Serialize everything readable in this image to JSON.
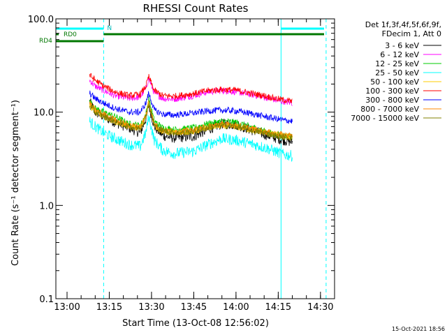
{
  "chart_data": {
    "type": "line",
    "title": "RHESSI Count Rates",
    "xlabel": "Start Time (13-Oct-08 12:56:02)",
    "ylabel": "Count Rate (s⁻¹ detector segment⁻¹)",
    "y_scale": "log",
    "ylim": [
      0.1,
      100.0
    ],
    "xlim": [
      "12:56:02",
      "14:35"
    ],
    "x_ticks": [
      "13:00",
      "13:15",
      "13:30",
      "13:45",
      "14:00",
      "14:15",
      "14:30"
    ],
    "y_ticks": [
      "0.1",
      "1.0",
      "10.0",
      "100.0"
    ],
    "legend_header": [
      "Det 1f,3f,4f,5f,6f,9f,",
      "FDecim 1, Att 0"
    ],
    "legend_position": "outside-right",
    "footer_date": "15-Oct-2021 18:56",
    "attenuator_labels": [
      "RD0",
      "RD4",
      "N"
    ],
    "series": [
      {
        "name": "3 - 6 keV",
        "color": "#000000",
        "x": [
          "13:08",
          "13:10",
          "13:13",
          "13:17",
          "13:22",
          "13:26",
          "13:28",
          "13:29",
          "13:31",
          "13:34",
          "13:38",
          "13:45",
          "13:50",
          "13:55",
          "14:00",
          "14:05",
          "14:10",
          "14:14",
          "14:17",
          "14:20"
        ],
        "values": [
          13.0,
          10.0,
          9.0,
          7.8,
          6.8,
          6.0,
          8.5,
          12.0,
          7.0,
          5.6,
          5.3,
          5.5,
          6.5,
          7.5,
          7.4,
          6.5,
          5.8,
          5.3,
          5.0,
          4.8
        ]
      },
      {
        "name": "6 - 12 keV",
        "color": "#ff00ff",
        "x": [
          "13:08",
          "13:10",
          "13:13",
          "13:17",
          "13:22",
          "13:26",
          "13:28",
          "13:29",
          "13:31",
          "13:34",
          "13:38",
          "13:45",
          "13:50",
          "13:55",
          "14:00",
          "14:05",
          "14:10",
          "14:14",
          "14:17",
          "14:20"
        ],
        "values": [
          22.0,
          19.0,
          17.0,
          15.0,
          14.0,
          14.5,
          18.0,
          23.0,
          16.0,
          14.0,
          13.8,
          15.0,
          16.5,
          17.0,
          16.5,
          15.5,
          14.5,
          13.5,
          13.0,
          12.5
        ]
      },
      {
        "name": "12 - 25 keV",
        "color": "#00cc00",
        "x": [
          "13:08",
          "13:10",
          "13:13",
          "13:17",
          "13:22",
          "13:26",
          "13:28",
          "13:29",
          "13:31",
          "13:34",
          "13:38",
          "13:45",
          "13:50",
          "13:55",
          "14:00",
          "14:05",
          "14:10",
          "14:14",
          "14:17",
          "14:20"
        ],
        "values": [
          13.0,
          11.0,
          10.0,
          9.0,
          7.5,
          7.2,
          9.5,
          14.0,
          8.0,
          6.8,
          6.5,
          6.8,
          7.5,
          8.0,
          7.8,
          7.0,
          6.3,
          5.8,
          5.6,
          5.5
        ]
      },
      {
        "name": "25 - 50 keV",
        "color": "#00ffff",
        "x": [
          "13:08",
          "13:10",
          "13:13",
          "13:17",
          "13:22",
          "13:26",
          "13:28",
          "13:29",
          "13:31",
          "13:34",
          "13:38",
          "13:45",
          "13:50",
          "13:55",
          "14:00",
          "14:05",
          "14:10",
          "14:14",
          "14:17",
          "14:20"
        ],
        "values": [
          8.0,
          7.0,
          6.0,
          5.2,
          4.5,
          4.3,
          6.0,
          9.0,
          5.0,
          3.9,
          3.6,
          3.8,
          4.5,
          5.2,
          5.0,
          4.6,
          4.2,
          3.8,
          3.5,
          3.4
        ]
      },
      {
        "name": "50 - 100 keV",
        "color": "#ffcc00",
        "x": [
          "13:08",
          "13:10",
          "13:13",
          "13:17",
          "13:22",
          "13:26",
          "13:28",
          "13:29",
          "13:31",
          "13:34",
          "13:38",
          "13:45",
          "13:50",
          "13:55",
          "14:00",
          "14:05",
          "14:10",
          "14:14",
          "14:17",
          "14:20"
        ],
        "values": [
          12.0,
          10.0,
          9.0,
          8.0,
          7.0,
          6.8,
          9.0,
          13.0,
          7.2,
          6.2,
          6.0,
          6.2,
          6.8,
          7.2,
          7.0,
          6.5,
          6.0,
          5.7,
          5.5,
          5.4
        ]
      },
      {
        "name": "100 - 300 keV",
        "color": "#ff0000",
        "x": [
          "13:08",
          "13:10",
          "13:13",
          "13:17",
          "13:22",
          "13:26",
          "13:28",
          "13:29",
          "13:31",
          "13:34",
          "13:38",
          "13:45",
          "13:50",
          "13:55",
          "14:00",
          "14:05",
          "14:10",
          "14:14",
          "14:17",
          "14:20"
        ],
        "values": [
          25.0,
          22.0,
          19.0,
          16.5,
          15.0,
          15.5,
          19.0,
          24.0,
          17.0,
          15.0,
          14.8,
          15.8,
          17.0,
          17.5,
          17.2,
          16.0,
          15.0,
          14.0,
          13.5,
          13.0
        ]
      },
      {
        "name": "300 - 800 keV",
        "color": "#0000ff",
        "x": [
          "13:08",
          "13:10",
          "13:13",
          "13:17",
          "13:22",
          "13:26",
          "13:28",
          "13:29",
          "13:31",
          "13:34",
          "13:38",
          "13:45",
          "13:50",
          "13:55",
          "14:00",
          "14:05",
          "14:10",
          "14:14",
          "14:17",
          "14:20"
        ],
        "values": [
          16.0,
          14.0,
          12.5,
          11.0,
          10.0,
          10.0,
          12.5,
          16.0,
          10.5,
          9.5,
          9.3,
          9.8,
          10.3,
          10.5,
          10.3,
          9.7,
          9.0,
          8.5,
          8.2,
          8.0
        ]
      },
      {
        "name": "800 - 7000 keV",
        "color": "#ff8800",
        "x": [
          "13:08",
          "13:10",
          "13:13",
          "13:17",
          "13:22",
          "13:26",
          "13:28",
          "13:29",
          "13:31",
          "13:34",
          "13:38",
          "13:45",
          "13:50",
          "13:55",
          "14:00",
          "14:05",
          "14:10",
          "14:14",
          "14:17",
          "14:20"
        ],
        "values": [
          12.5,
          10.5,
          9.5,
          8.3,
          7.2,
          7.0,
          9.2,
          13.0,
          7.4,
          6.4,
          6.2,
          6.4,
          7.0,
          7.4,
          7.2,
          6.7,
          6.2,
          5.9,
          5.7,
          5.6
        ]
      },
      {
        "name": "7000 - 15000 keV",
        "color": "#808000",
        "x": [
          "13:08",
          "13:10",
          "13:13",
          "13:17",
          "13:22",
          "13:26",
          "13:28",
          "13:29",
          "13:31",
          "13:34",
          "13:38",
          "13:45",
          "13:50",
          "13:55",
          "14:00",
          "14:05",
          "14:10",
          "14:14",
          "14:17",
          "14:20"
        ],
        "values": [
          11.5,
          10.0,
          9.0,
          8.0,
          7.0,
          6.7,
          8.8,
          12.5,
          7.2,
          6.3,
          6.0,
          6.2,
          6.8,
          7.2,
          7.0,
          6.4,
          6.0,
          5.6,
          5.4,
          5.3
        ]
      }
    ]
  }
}
